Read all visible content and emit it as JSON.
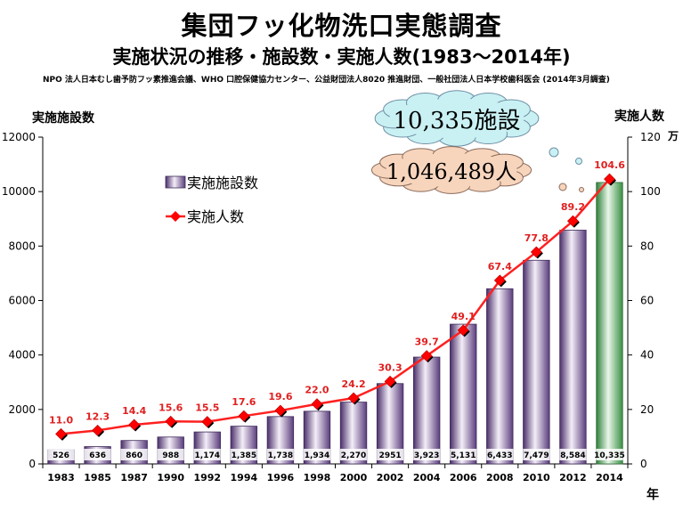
{
  "title": "集団フッ化物洗口実態調査",
  "subtitle": "実施状況の推移・施設数・実施人数(1983～2014年)",
  "source": "NPO 法人日本むし歯予防フッ素推進会議、WHO 口腔保健協力センター、公益財団法人8020 推進財団、一般社団法人日本学校歯科医会 (2014年3月調査)",
  "callouts": {
    "facilities": "10,335施設",
    "people": "1,046,489人"
  },
  "colors": {
    "bar": "#8a6fa8",
    "bar_highlight": "#6fbf6f",
    "line": "#ff2020",
    "marker": "#ff0000",
    "label": "#e02020"
  },
  "chart_data": {
    "type": "bar",
    "categories": [
      "1983",
      "1985",
      "1987",
      "1990",
      "1992",
      "1994",
      "1996",
      "1998",
      "2000",
      "2002",
      "2004",
      "2006",
      "2008",
      "2010",
      "2012",
      "2014"
    ],
    "series": [
      {
        "name": "実施施設数",
        "type": "bar",
        "axis": "left",
        "values": [
          526,
          636,
          860,
          988,
          1174,
          1385,
          1738,
          1934,
          2270,
          2951,
          3923,
          5131,
          6433,
          7479,
          8584,
          10335
        ],
        "labels": [
          "526",
          "636",
          "860",
          "988",
          "1,174",
          "1,385",
          "1,738",
          "1,934",
          "2,270",
          "2951",
          "3,923",
          "5,131",
          "6,433",
          "7,479",
          "8,584",
          "10,335"
        ]
      },
      {
        "name": "実施人数",
        "type": "line",
        "axis": "right",
        "values": [
          11.0,
          12.3,
          14.4,
          15.6,
          15.5,
          17.6,
          19.6,
          22.0,
          24.2,
          30.3,
          39.7,
          49.1,
          67.4,
          77.8,
          89.2,
          104.6
        ],
        "labels": [
          "11.0",
          "12.3",
          "14.4",
          "15.6",
          "15.5",
          "17.6",
          "19.6",
          "22.0",
          "24.2",
          "30.3",
          "39.7",
          "49.1",
          "67.4",
          "77.8",
          "89.2",
          "104.6"
        ]
      }
    ],
    "ylabel": "実施施設数",
    "ylabel_right": "実施人数",
    "ylabel_right_unit": "万",
    "xlabel": "年",
    "ylim": [
      0,
      12000
    ],
    "ylim_right": [
      0,
      120
    ],
    "yticks": [
      "0",
      "2000",
      "4000",
      "6000",
      "8000",
      "10000",
      "12000"
    ],
    "yticks_right": [
      "0",
      "20",
      "40",
      "60",
      "80",
      "100",
      "120"
    ],
    "legend": [
      "実施施設数",
      "実施人数"
    ],
    "legend_position": "top-left",
    "grid": false
  }
}
